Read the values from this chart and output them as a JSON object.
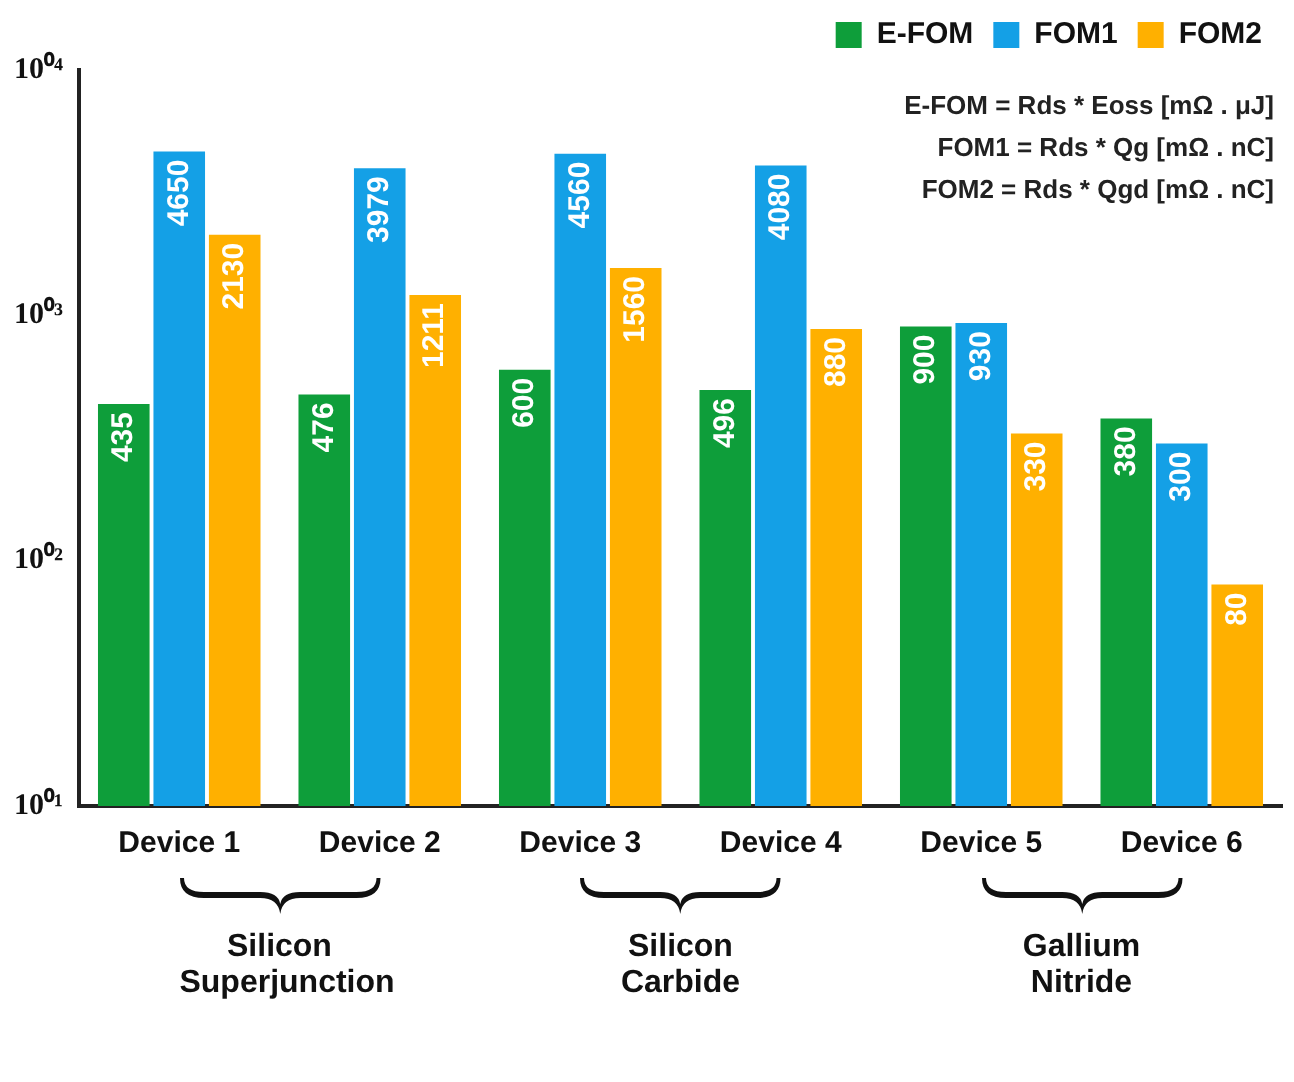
{
  "chart_data": {
    "type": "bar",
    "categories": [
      "Device 1",
      "Device 2",
      "Device 3",
      "Device 4",
      "Device 5",
      "Device 6"
    ],
    "series": [
      {
        "name": "E-FOM",
        "color": "#0e9e3a",
        "values": [
          435,
          476,
          600,
          496,
          900,
          380
        ]
      },
      {
        "name": "FOM1",
        "color": "#14a0e6",
        "values": [
          4650,
          3979,
          4560,
          4080,
          930,
          300
        ]
      },
      {
        "name": "FOM2",
        "color": "#ffb000",
        "values": [
          2130,
          1211,
          1560,
          880,
          330,
          80
        ]
      }
    ],
    "log": true,
    "ylim": [
      10,
      10000
    ],
    "yticks": [
      {
        "value": 10,
        "label": "10⁰¹"
      },
      {
        "value": 100,
        "label": "10⁰²"
      },
      {
        "value": 1000,
        "label": "10⁰³"
      },
      {
        "value": 10000,
        "label": "10⁰⁴"
      }
    ],
    "grid": false,
    "legend": "top right",
    "data_labels": true,
    "annotations": [
      "E-FOM = Rds * Eoss [mΩ . μJ]",
      "FOM1 = Rds * Qg [mΩ . nC]",
      "FOM2 = Rds * Qgd [mΩ . nC]",
      "Silicon Superjunction",
      "Silicon Carbide",
      "Gallium Nitride"
    ]
  }
}
